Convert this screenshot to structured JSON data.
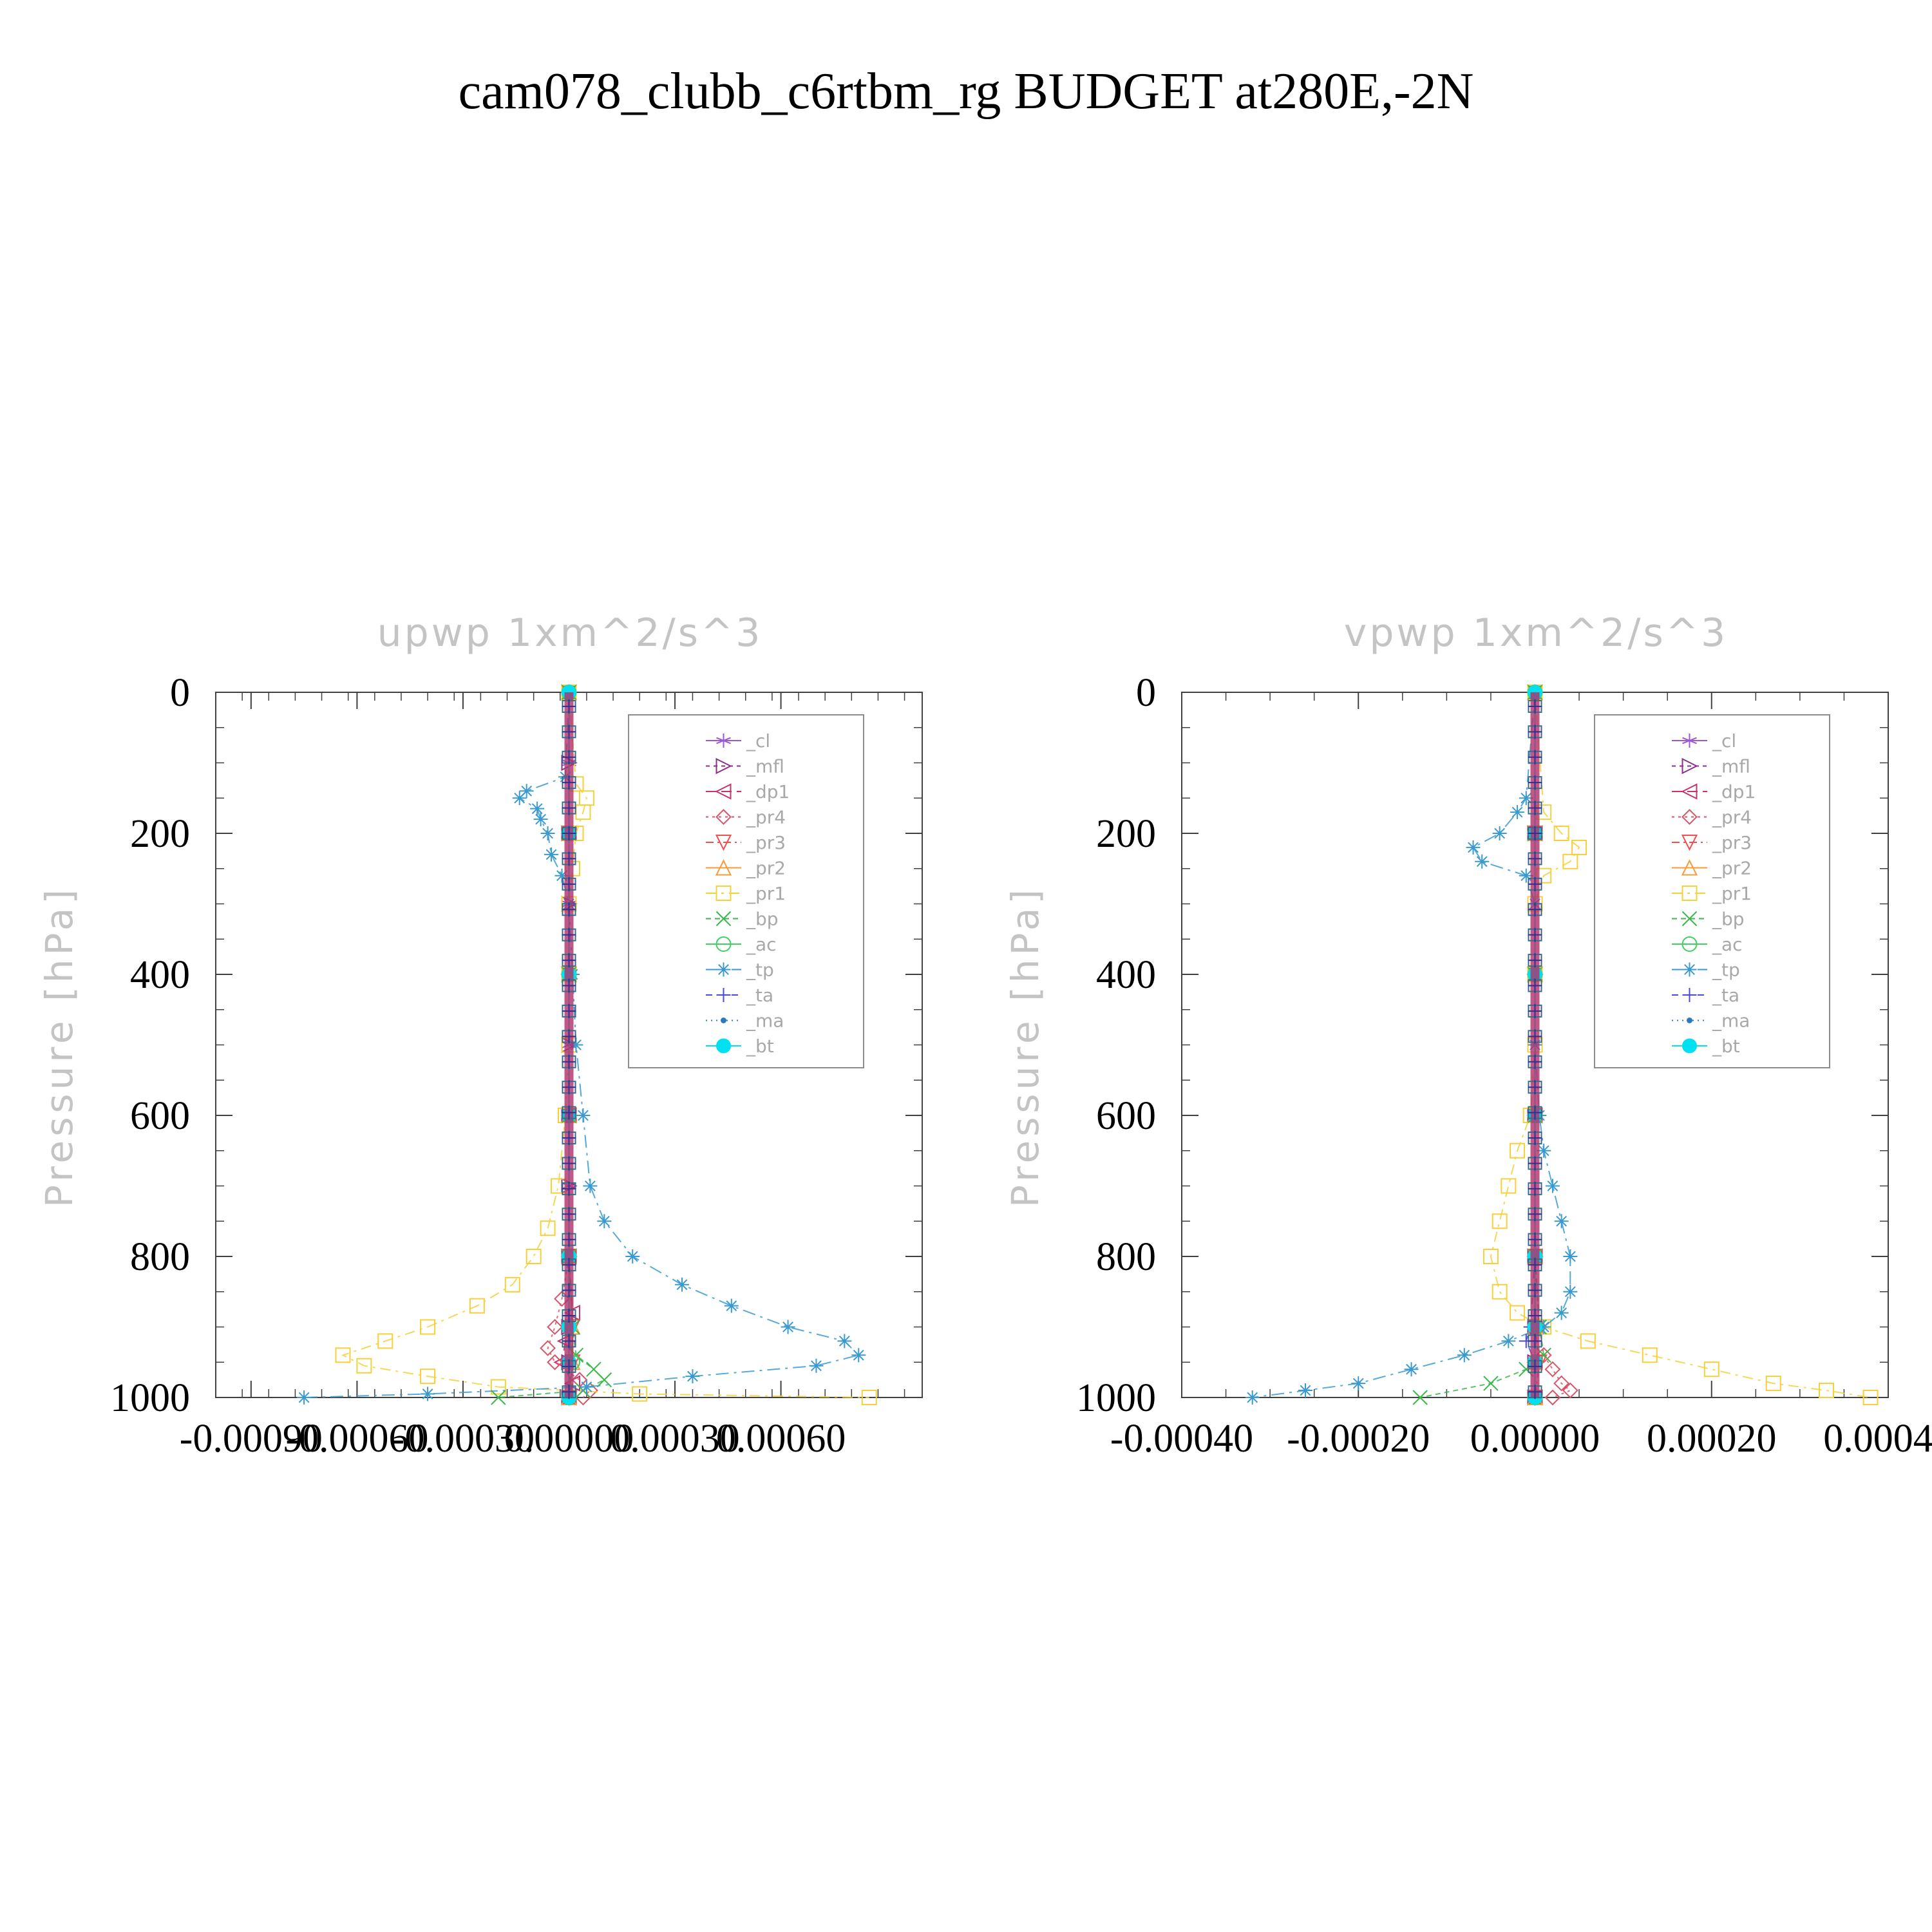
{
  "figure": {
    "title": "cam078_clubb_c6rtbm_rg  BUDGET at280E,-2N"
  },
  "chart_data": [
    {
      "type": "line",
      "panel": "upwp",
      "title": "upwp   1xm^2/s^3",
      "ylabel": "Pressure [hPa]",
      "xlabel": "",
      "xlim": [
        -0.001,
        0.001
      ],
      "ylim": [
        1000,
        0
      ],
      "y_ticks": [
        0,
        200,
        400,
        600,
        800,
        1000
      ],
      "y_tick_labels": [
        "0",
        "200",
        "400",
        "600",
        "800",
        "1000"
      ],
      "x_ticks": [
        -0.0009,
        -0.0006,
        -0.0003,
        0.0,
        0.0003,
        0.0006
      ],
      "x_tick_labels": [
        "-0.00090",
        "-0.00060",
        "-0.00030",
        "0.00000",
        "0.00030",
        "0.00060"
      ],
      "legend_position": "top-right",
      "series": [
        {
          "name": "_cl",
          "color": "#9b59d0",
          "marker": "star",
          "y": [
            0,
            100,
            200,
            300,
            400,
            500,
            600,
            700,
            800,
            900,
            950,
            1000
          ],
          "x": [
            0,
            0,
            0,
            0,
            0,
            0,
            0,
            0,
            0,
            0,
            0,
            0
          ]
        },
        {
          "name": "_mfl",
          "color": "#8e2f8e",
          "marker": "triangle-right",
          "y": [
            0,
            100,
            200,
            300,
            400,
            500,
            600,
            700,
            800,
            900,
            950,
            1000
          ],
          "x": [
            0,
            0,
            0,
            0,
            0,
            0,
            0,
            0,
            0,
            0,
            0,
            0
          ]
        },
        {
          "name": "_dp1",
          "color": "#c8326c",
          "marker": "triangle-left",
          "y": [
            0,
            200,
            400,
            600,
            800,
            880,
            920,
            950,
            980,
            1000
          ],
          "x": [
            0,
            0,
            0,
            0,
            0,
            1e-05,
            -1e-05,
            -2e-05,
            1e-05,
            0
          ]
        },
        {
          "name": "_pr4",
          "color": "#d9556a",
          "marker": "diamond",
          "y": [
            0,
            200,
            400,
            600,
            800,
            860,
            900,
            930,
            950,
            975,
            990,
            1000
          ],
          "x": [
            0,
            0,
            0,
            0,
            0,
            -2e-05,
            -4e-05,
            -6e-05,
            -4e-05,
            3e-05,
            6e-05,
            4e-05
          ]
        },
        {
          "name": "_pr3",
          "color": "#f05050",
          "marker": "triangle-down",
          "y": [
            0,
            200,
            400,
            600,
            800,
            900,
            950,
            1000
          ],
          "x": [
            0,
            0,
            0,
            0,
            0,
            1e-05,
            1e-05,
            0
          ]
        },
        {
          "name": "_pr2",
          "color": "#f59b3a",
          "marker": "triangle-up",
          "y": [
            0,
            200,
            400,
            600,
            800,
            900,
            950,
            1000
          ],
          "x": [
            0,
            0,
            0,
            0,
            0,
            1e-05,
            1e-05,
            0
          ]
        },
        {
          "name": "_pr1",
          "color": "#f5d03a",
          "marker": "square",
          "y": [
            0,
            130,
            150,
            170,
            200,
            250,
            300,
            400,
            500,
            600,
            700,
            760,
            800,
            840,
            870,
            900,
            920,
            940,
            955,
            970,
            985,
            995,
            1000
          ],
          "x": [
            0,
            2e-05,
            5e-05,
            4e-05,
            2e-05,
            1e-05,
            0,
            0,
            0,
            -1e-05,
            -3e-05,
            -6e-05,
            -0.0001,
            -0.00016,
            -0.00026,
            -0.0004,
            -0.00052,
            -0.00064,
            -0.00058,
            -0.0004,
            -0.0002,
            0.0002,
            0.00085
          ]
        },
        {
          "name": "_bp",
          "color": "#3ab84a",
          "marker": "x",
          "y": [
            0,
            200,
            400,
            600,
            800,
            900,
            940,
            960,
            975,
            990,
            1000
          ],
          "x": [
            0,
            0,
            0,
            0,
            0,
            1e-05,
            2e-05,
            7e-05,
            0.0001,
            4e-05,
            -0.0002
          ]
        },
        {
          "name": "_ac",
          "color": "#40d060",
          "marker": "circle",
          "y": [
            0,
            200,
            400,
            600,
            800,
            900,
            950,
            1000
          ],
          "x": [
            0,
            0,
            0,
            0,
            0,
            0,
            1e-05,
            0
          ]
        },
        {
          "name": "_tp",
          "color": "#3a9ad0",
          "marker": "asterisk",
          "y": [
            0,
            120,
            140,
            150,
            165,
            180,
            200,
            230,
            260,
            300,
            400,
            500,
            600,
            700,
            750,
            800,
            840,
            870,
            900,
            920,
            940,
            955,
            970,
            985,
            995,
            1000
          ],
          "x": [
            0,
            -1e-05,
            -0.00012,
            -0.00014,
            -9e-05,
            -8e-05,
            -6e-05,
            -5e-05,
            -2e-05,
            0,
            1e-05,
            2e-05,
            4e-05,
            6e-05,
            0.0001,
            0.00018,
            0.00032,
            0.00046,
            0.00062,
            0.00078,
            0.00082,
            0.0007,
            0.00035,
            5e-05,
            -0.0004,
            -0.00075
          ]
        },
        {
          "name": "_ta",
          "color": "#4a4ad8",
          "marker": "plus",
          "y": [
            0,
            200,
            400,
            600,
            800,
            900,
            950,
            1000
          ],
          "x": [
            0,
            0,
            0,
            0,
            0,
            0,
            0,
            0
          ]
        },
        {
          "name": "_ma",
          "color": "#2a7ac0",
          "marker": "dot",
          "y": [
            0,
            200,
            400,
            600,
            800,
            900,
            950,
            1000
          ],
          "x": [
            0,
            0,
            0,
            0,
            0,
            0,
            0,
            0
          ]
        },
        {
          "name": "_bt",
          "color": "#00e0f0",
          "marker": "filled-circle",
          "y": [
            0,
            200,
            400,
            600,
            800,
            900,
            950,
            1000
          ],
          "x": [
            0,
            0,
            0,
            0,
            0,
            0,
            0,
            0
          ]
        }
      ]
    },
    {
      "type": "line",
      "panel": "vpwp",
      "title": "vpwp   1xm^2/s^3",
      "ylabel": "Pressure [hPa]",
      "xlabel": "",
      "xlim": [
        -0.0004,
        0.0004
      ],
      "ylim": [
        1000,
        0
      ],
      "y_ticks": [
        0,
        200,
        400,
        600,
        800,
        1000
      ],
      "y_tick_labels": [
        "0",
        "200",
        "400",
        "600",
        "800",
        "1000"
      ],
      "x_ticks": [
        -0.0004,
        -0.0002,
        0.0,
        0.0002,
        0.0004
      ],
      "x_tick_labels": [
        "-0.00040",
        "-0.00020",
        "0.00000",
        "0.00020",
        "0.00040"
      ],
      "legend_position": "top-right",
      "series": [
        {
          "name": "_cl",
          "color": "#9b59d0",
          "marker": "star",
          "y": [
            0,
            200,
            400,
            600,
            800,
            900,
            950,
            1000
          ],
          "x": [
            0,
            0,
            0,
            0,
            0,
            0,
            0,
            0
          ]
        },
        {
          "name": "_mfl",
          "color": "#8e2f8e",
          "marker": "triangle-right",
          "y": [
            0,
            200,
            400,
            600,
            800,
            900,
            950,
            1000
          ],
          "x": [
            0,
            0,
            0,
            0,
            0,
            0,
            0,
            0
          ]
        },
        {
          "name": "_dp1",
          "color": "#c8326c",
          "marker": "triangle-left",
          "y": [
            0,
            200,
            400,
            600,
            800,
            900,
            950,
            1000
          ],
          "x": [
            0,
            0,
            0,
            0,
            0,
            0,
            0,
            0
          ]
        },
        {
          "name": "_pr4",
          "color": "#d9556a",
          "marker": "diamond",
          "y": [
            0,
            200,
            400,
            600,
            800,
            900,
            940,
            960,
            980,
            990,
            1000
          ],
          "x": [
            0,
            0,
            0,
            0,
            0,
            5e-06,
            1e-05,
            2e-05,
            3e-05,
            4e-05,
            2e-05
          ]
        },
        {
          "name": "_pr3",
          "color": "#f05050",
          "marker": "triangle-down",
          "y": [
            0,
            200,
            400,
            600,
            800,
            900,
            950,
            1000
          ],
          "x": [
            0,
            0,
            0,
            0,
            0,
            0,
            5e-06,
            0
          ]
        },
        {
          "name": "_pr2",
          "color": "#f59b3a",
          "marker": "triangle-up",
          "y": [
            0,
            200,
            400,
            600,
            800,
            900,
            950,
            1000
          ],
          "x": [
            0,
            0,
            0,
            0,
            0,
            0,
            0,
            0
          ]
        },
        {
          "name": "_pr1",
          "color": "#f5d03a",
          "marker": "square",
          "y": [
            0,
            170,
            200,
            220,
            240,
            260,
            300,
            400,
            500,
            600,
            650,
            700,
            750,
            800,
            850,
            880,
            900,
            920,
            940,
            960,
            980,
            990,
            1000
          ],
          "x": [
            0,
            1e-05,
            3e-05,
            5e-05,
            4e-05,
            1e-05,
            0,
            0,
            0,
            -5e-06,
            -2e-05,
            -3e-05,
            -4e-05,
            -5e-05,
            -4e-05,
            -2e-05,
            1e-05,
            6e-05,
            0.00013,
            0.0002,
            0.00027,
            0.00033,
            0.00038
          ]
        },
        {
          "name": "_bp",
          "color": "#3ab84a",
          "marker": "x",
          "y": [
            0,
            200,
            400,
            600,
            800,
            900,
            940,
            960,
            980,
            1000
          ],
          "x": [
            0,
            0,
            0,
            0,
            0,
            5e-06,
            1e-05,
            -1e-05,
            -5e-05,
            -0.00013
          ]
        },
        {
          "name": "_ac",
          "color": "#40d060",
          "marker": "circle",
          "y": [
            0,
            200,
            400,
            600,
            800,
            900,
            950,
            1000
          ],
          "x": [
            0,
            0,
            0,
            0,
            0,
            0,
            0,
            0
          ]
        },
        {
          "name": "_tp",
          "color": "#3a9ad0",
          "marker": "asterisk",
          "y": [
            0,
            150,
            170,
            200,
            220,
            240,
            260,
            300,
            400,
            500,
            600,
            650,
            700,
            750,
            800,
            850,
            880,
            900,
            920,
            940,
            960,
            980,
            990,
            1000
          ],
          "x": [
            0,
            -1e-05,
            -2e-05,
            -4e-05,
            -7e-05,
            -6e-05,
            -1e-05,
            0,
            0,
            0,
            5e-06,
            1e-05,
            2e-05,
            3e-05,
            4e-05,
            4e-05,
            3e-05,
            1e-05,
            -3e-05,
            -8e-05,
            -0.00014,
            -0.0002,
            -0.00026,
            -0.00032
          ]
        },
        {
          "name": "_ta",
          "color": "#4a4ad8",
          "marker": "plus",
          "y": [
            0,
            200,
            400,
            600,
            800,
            900,
            920,
            950,
            1000
          ],
          "x": [
            0,
            0,
            0,
            0,
            0,
            -5e-06,
            -1e-05,
            0,
            0
          ]
        },
        {
          "name": "_ma",
          "color": "#2a7ac0",
          "marker": "dot",
          "y": [
            0,
            200,
            400,
            600,
            800,
            900,
            950,
            1000
          ],
          "x": [
            0,
            0,
            0,
            0,
            0,
            0,
            0,
            0
          ]
        },
        {
          "name": "_bt",
          "color": "#00e0f0",
          "marker": "filled-circle",
          "y": [
            0,
            200,
            400,
            600,
            800,
            900,
            950,
            1000
          ],
          "x": [
            0,
            0,
            0,
            0,
            0,
            0,
            0,
            0
          ]
        }
      ]
    }
  ]
}
